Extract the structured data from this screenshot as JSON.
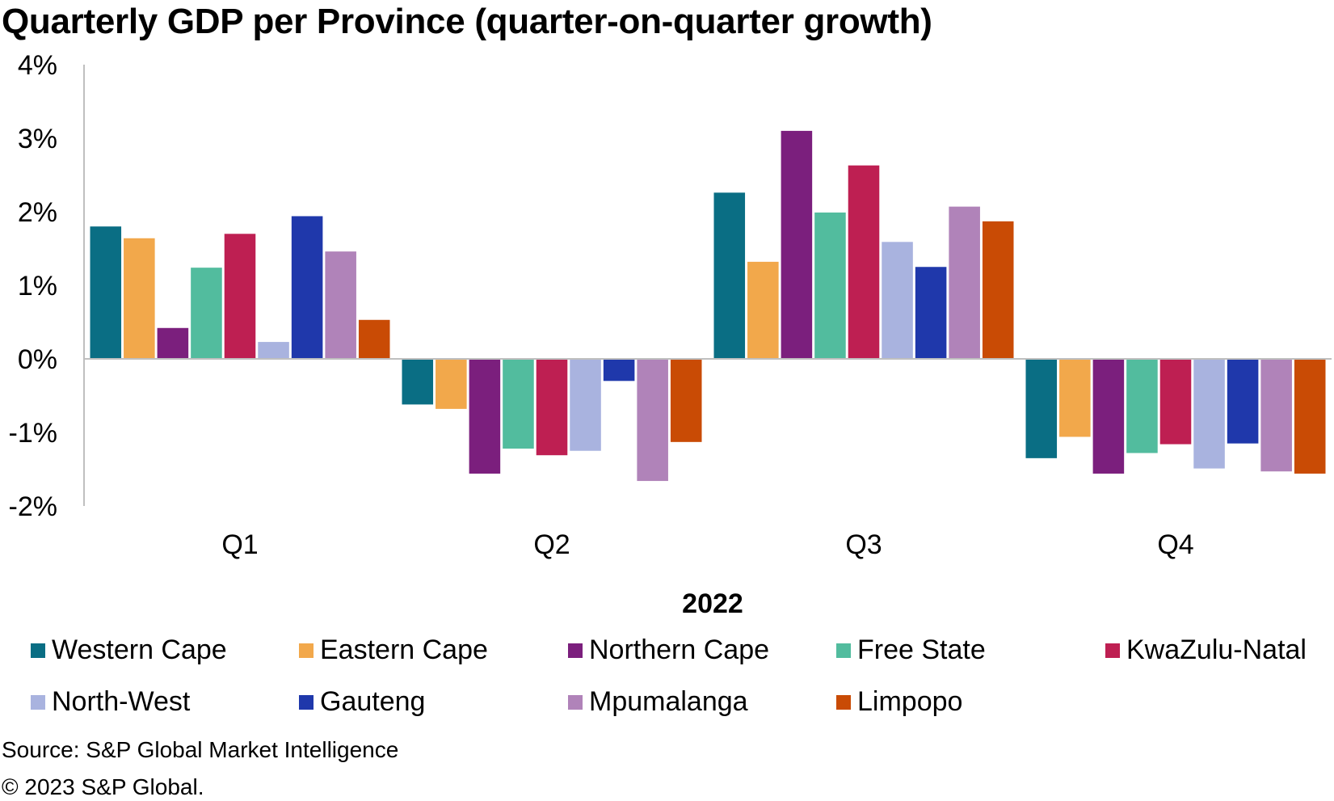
{
  "title": "Quarterly GDP per Province (quarter-on-quarter growth)",
  "source": "Source: S&P Global Market Intelligence",
  "copyright": "© 2023 S&P Global.",
  "chart_data": {
    "type": "bar",
    "title": "Quarterly GDP per Province (quarter-on-quarter growth)",
    "xlabel": "2022",
    "ylabel": "",
    "categories": [
      "Q1",
      "Q2",
      "Q3",
      "Q4"
    ],
    "ylim": [
      -2,
      4
    ],
    "yticks": [
      "-2%",
      "-1%",
      "0%",
      "1%",
      "2%",
      "3%",
      "4%"
    ],
    "ytick_values": [
      -2,
      -1,
      0,
      1,
      2,
      3,
      4
    ],
    "grid": false,
    "legend_position": "bottom",
    "series": [
      {
        "name": "Western Cape",
        "color": "#0A6E84",
        "values": [
          1.8,
          -0.62,
          2.26,
          -1.35
        ]
      },
      {
        "name": "Eastern Cape",
        "color": "#F2A84B",
        "values": [
          1.64,
          -0.68,
          1.32,
          -1.06
        ]
      },
      {
        "name": "Northern Cape",
        "color": "#7B1F7D",
        "values": [
          0.42,
          -1.56,
          3.1,
          -1.56
        ]
      },
      {
        "name": "Free State",
        "color": "#52BC9E",
        "values": [
          1.24,
          -1.22,
          1.99,
          -1.28
        ]
      },
      {
        "name": "KwaZulu-Natal",
        "color": "#BE1F52",
        "values": [
          1.7,
          -1.31,
          2.63,
          -1.16
        ]
      },
      {
        "name": "North-West",
        "color": "#A9B3DF",
        "values": [
          0.23,
          -1.25,
          1.59,
          -1.49
        ]
      },
      {
        "name": "Gauteng",
        "color": "#1F38AB",
        "values": [
          1.94,
          -0.3,
          1.25,
          -1.15
        ]
      },
      {
        "name": "Mpumalanga",
        "color": "#B083B9",
        "values": [
          1.46,
          -1.66,
          2.07,
          -1.53
        ]
      },
      {
        "name": "Limpopo",
        "color": "#C94B05",
        "values": [
          0.53,
          -1.13,
          1.87,
          -1.56
        ]
      }
    ]
  }
}
